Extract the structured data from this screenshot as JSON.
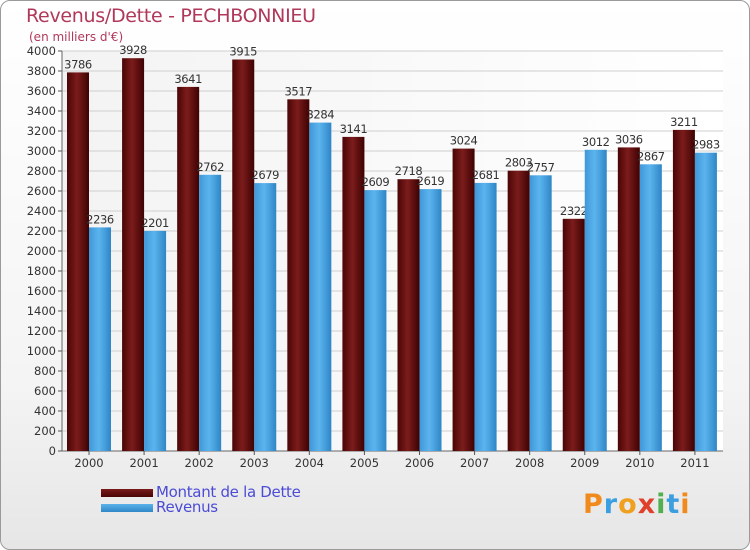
{
  "title": "Revenus/Dette - PECHBONNIEU",
  "subtitle": "(en milliers d'€)",
  "logo": {
    "text": "Proxiti",
    "letters": [
      {
        "ch": "P",
        "color": "#f08a1c"
      },
      {
        "ch": "r",
        "color": "#3a9ee0"
      },
      {
        "ch": "o",
        "color": "#f0a020"
      },
      {
        "ch": "x",
        "color": "#e0402a"
      },
      {
        "ch": "i",
        "color": "#50b050"
      },
      {
        "ch": "t",
        "color": "#3a9ee0"
      },
      {
        "ch": "i",
        "color": "#f08a1c"
      }
    ]
  },
  "colors": {
    "dette": "#6b1010",
    "revenus": "#4aa3e0",
    "grid": "#cfcfcf",
    "title": "#b0385a",
    "legend_text": "#4b4bd6"
  },
  "chart_data": {
    "type": "bar",
    "title": "Revenus/Dette - PECHBONNIEU",
    "subtitle": "(en milliers d'€)",
    "categories": [
      "2000",
      "2001",
      "2002",
      "2003",
      "2004",
      "2005",
      "2006",
      "2007",
      "2008",
      "2009",
      "2010",
      "2011"
    ],
    "series": [
      {
        "name": "Montant de la Dette",
        "values": [
          3786,
          3928,
          3641,
          3915,
          3517,
          3141,
          2718,
          3024,
          2803,
          2322,
          3036,
          3211
        ]
      },
      {
        "name": "Revenus",
        "values": [
          2236,
          2201,
          2762,
          2679,
          3284,
          2609,
          2619,
          2681,
          2757,
          3012,
          2867,
          2983
        ]
      }
    ],
    "ylim": [
      0,
      4000
    ],
    "yticks": [
      0,
      200,
      400,
      600,
      800,
      1000,
      1200,
      1400,
      1600,
      1800,
      2000,
      2200,
      2400,
      2600,
      2800,
      3000,
      3200,
      3400,
      3600,
      3800,
      4000
    ],
    "grid": true,
    "legend_position": "bottom-left"
  }
}
